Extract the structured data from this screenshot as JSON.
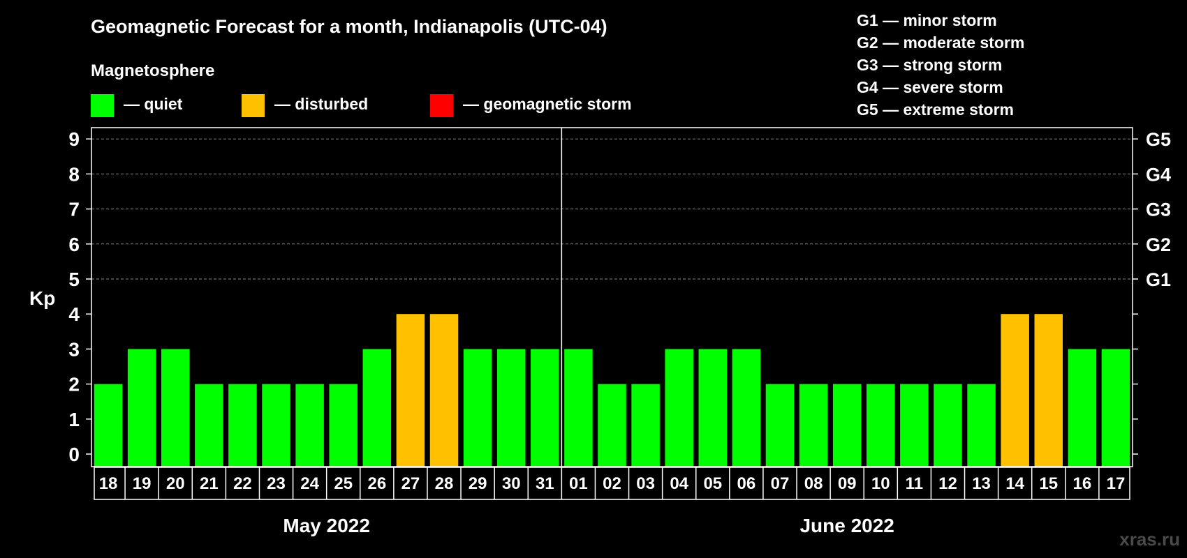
{
  "title": "Geomagnetic Forecast for a month, Indianapolis (UTC-04)",
  "legend": {
    "heading": "Magnetosphere",
    "items": [
      {
        "label": "— quiet",
        "color": "#00ff00"
      },
      {
        "label": "— disturbed",
        "color": "#ffc000"
      },
      {
        "label": "— geomagnetic storm",
        "color": "#ff0000"
      }
    ]
  },
  "storm_scale": [
    "G1 — minor storm",
    "G2 — moderate storm",
    "G3 — strong storm",
    "G4 — severe storm",
    "G5 — extreme storm"
  ],
  "watermark": "xras.ru",
  "chart_data": {
    "type": "bar",
    "title": "Geomagnetic Forecast for a month, Indianapolis (UTC-04)",
    "ylabel": "Kp",
    "xlabel": "",
    "ylim": [
      0,
      9
    ],
    "yticks": [
      "0",
      "1",
      "2",
      "3",
      "4",
      "5",
      "6",
      "7",
      "8",
      "9"
    ],
    "right_axis_labels": [
      {
        "kp": 5,
        "label": "G1"
      },
      {
        "kp": 6,
        "label": "G2"
      },
      {
        "kp": 7,
        "label": "G3"
      },
      {
        "kp": 8,
        "label": "G4"
      },
      {
        "kp": 9,
        "label": "G5"
      }
    ],
    "grid": "dashed horizontal at Kp 5-9",
    "months": [
      {
        "label": "May 2022",
        "start": 0,
        "end": 13
      },
      {
        "label": "June 2022",
        "start": 14,
        "end": 30
      }
    ],
    "categories": [
      "18",
      "19",
      "20",
      "21",
      "22",
      "23",
      "24",
      "25",
      "26",
      "27",
      "28",
      "29",
      "30",
      "31",
      "01",
      "02",
      "03",
      "04",
      "05",
      "06",
      "07",
      "08",
      "09",
      "10",
      "11",
      "12",
      "13",
      "14",
      "15",
      "16",
      "17"
    ],
    "values": [
      2,
      3,
      3,
      2,
      2,
      2,
      2,
      2,
      3,
      4,
      4,
      3,
      3,
      3,
      3,
      2,
      2,
      3,
      3,
      3,
      2,
      2,
      2,
      2,
      2,
      2,
      2,
      4,
      4,
      3,
      3
    ],
    "status": [
      "quiet",
      "quiet",
      "quiet",
      "quiet",
      "quiet",
      "quiet",
      "quiet",
      "quiet",
      "quiet",
      "disturbed",
      "disturbed",
      "quiet",
      "quiet",
      "quiet",
      "quiet",
      "quiet",
      "quiet",
      "quiet",
      "quiet",
      "quiet",
      "quiet",
      "quiet",
      "quiet",
      "quiet",
      "quiet",
      "quiet",
      "quiet",
      "disturbed",
      "disturbed",
      "quiet",
      "quiet"
    ],
    "colors": {
      "quiet": "#00ff00",
      "disturbed": "#ffc000",
      "storm": "#ff0000"
    }
  }
}
